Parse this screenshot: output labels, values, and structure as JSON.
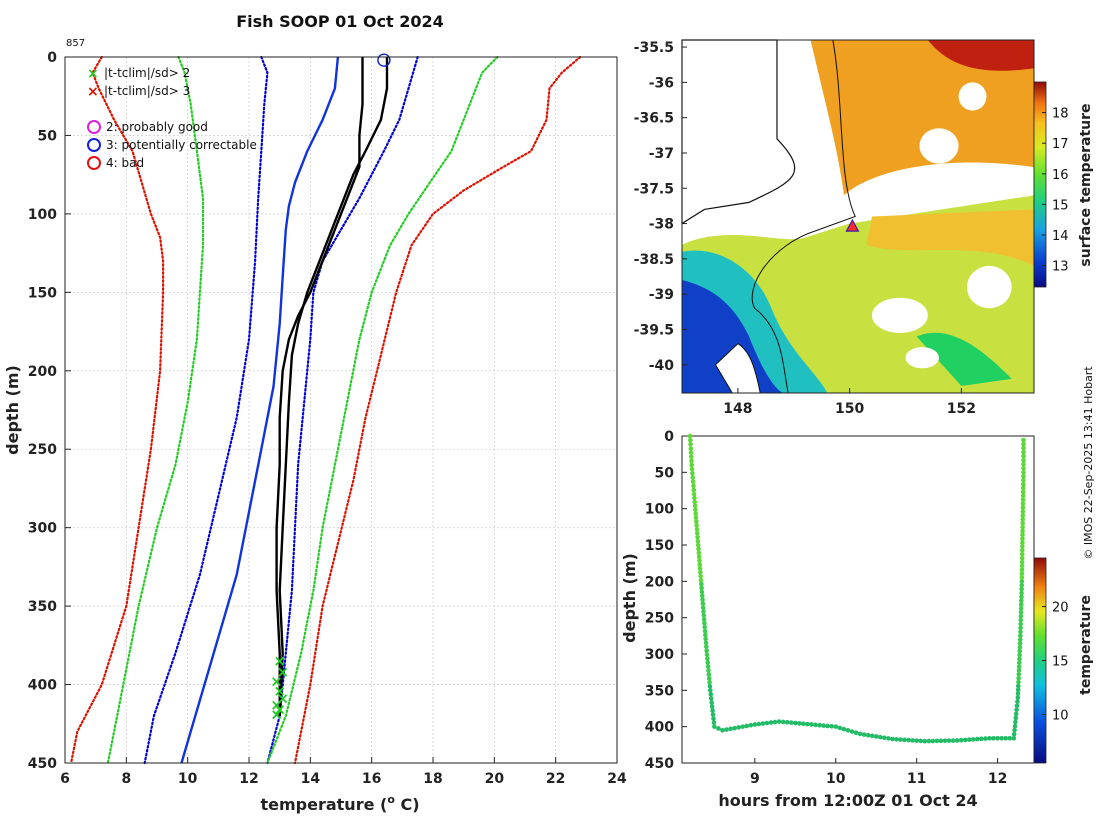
{
  "title": "Fish SOOP 01 Oct 2024",
  "profile_id": "857",
  "credit": "© IMOS 22-Sep-2025 13:41 Hobart",
  "legend": {
    "x2": "|t-tclim|/sd> 2",
    "x3": "|t-tclim|/sd> 3",
    "q2": "2: probably good",
    "q3": "3: potentially correctable",
    "q4": "4: bad"
  },
  "colors": {
    "clim_sd1": "#0000dd",
    "clim_sd2": "#22cc22",
    "clim_sd3": "#dd1100",
    "profile": "#000000",
    "mean": "#1133dd"
  },
  "chart_data": [
    {
      "type": "line",
      "title": "Fish SOOP 01 Oct 2024",
      "xlabel": "temperature (",
      "xlabel_unit": "o",
      "xlabel_tail": " C)",
      "ylabel": "depth (m)",
      "xlim": [
        6,
        24
      ],
      "ylim": [
        450,
        0
      ],
      "xticks": [
        6,
        8,
        10,
        12,
        14,
        16,
        18,
        20,
        22,
        24
      ],
      "yticks": [
        0,
        50,
        100,
        150,
        200,
        250,
        300,
        350,
        400,
        450
      ],
      "grid": true,
      "series": [
        {
          "name": "clim -3sd",
          "style": "dotted",
          "color": "#dd1100",
          "points": [
            [
              7.2,
              0
            ],
            [
              6.9,
              10
            ],
            [
              7.1,
              20
            ],
            [
              7.6,
              40
            ],
            [
              8.2,
              60
            ],
            [
              8.5,
              80
            ],
            [
              8.8,
              100
            ],
            [
              9.1,
              115
            ],
            [
              9.2,
              130
            ],
            [
              9.2,
              150
            ],
            [
              9.1,
              200
            ],
            [
              8.8,
              250
            ],
            [
              8.4,
              300
            ],
            [
              8.0,
              350
            ],
            [
              7.2,
              400
            ],
            [
              6.4,
              430
            ],
            [
              6.2,
              450
            ]
          ]
        },
        {
          "name": "clim -2sd",
          "style": "dotted",
          "color": "#22cc22",
          "points": [
            [
              9.7,
              0
            ],
            [
              9.9,
              10
            ],
            [
              10.1,
              30
            ],
            [
              10.3,
              60
            ],
            [
              10.5,
              90
            ],
            [
              10.5,
              120
            ],
            [
              10.4,
              150
            ],
            [
              10.3,
              180
            ],
            [
              10.0,
              220
            ],
            [
              9.6,
              260
            ],
            [
              9.0,
              300
            ],
            [
              8.4,
              350
            ],
            [
              7.9,
              400
            ],
            [
              7.4,
              450
            ]
          ]
        },
        {
          "name": "clim -1sd",
          "style": "dotted",
          "color": "#0000dd",
          "points": [
            [
              12.4,
              0
            ],
            [
              12.6,
              10
            ],
            [
              12.5,
              30
            ],
            [
              12.4,
              60
            ],
            [
              12.3,
              90
            ],
            [
              12.2,
              130
            ],
            [
              12.0,
              180
            ],
            [
              11.6,
              230
            ],
            [
              11.0,
              280
            ],
            [
              10.4,
              330
            ],
            [
              9.6,
              380
            ],
            [
              8.9,
              420
            ],
            [
              8.6,
              450
            ]
          ]
        },
        {
          "name": "clim mean",
          "style": "solid",
          "color": "#1133dd",
          "points": [
            [
              14.9,
              0
            ],
            [
              14.8,
              20
            ],
            [
              14.4,
              40
            ],
            [
              13.9,
              60
            ],
            [
              13.5,
              80
            ],
            [
              13.3,
              95
            ],
            [
              13.2,
              110
            ],
            [
              13.1,
              140
            ],
            [
              13.0,
              170
            ],
            [
              12.8,
              210
            ],
            [
              12.4,
              250
            ],
            [
              12.0,
              290
            ],
            [
              11.6,
              330
            ],
            [
              11.0,
              370
            ],
            [
              10.4,
              410
            ],
            [
              9.8,
              450
            ]
          ]
        },
        {
          "name": "clim +1sd",
          "style": "dotted",
          "color": "#0000dd",
          "points": [
            [
              17.5,
              0
            ],
            [
              17.2,
              20
            ],
            [
              16.9,
              40
            ],
            [
              16.4,
              60
            ],
            [
              15.6,
              90
            ],
            [
              15.0,
              110
            ],
            [
              14.4,
              130
            ],
            [
              14.1,
              150
            ],
            [
              14.0,
              180
            ],
            [
              13.8,
              220
            ],
            [
              13.6,
              260
            ],
            [
              13.5,
              300
            ],
            [
              13.4,
              340
            ],
            [
              13.2,
              380
            ],
            [
              13.0,
              420
            ],
            [
              12.6,
              450
            ]
          ]
        },
        {
          "name": "clim +2sd",
          "style": "dotted",
          "color": "#22cc22",
          "points": [
            [
              20.1,
              0
            ],
            [
              19.6,
              10
            ],
            [
              19.2,
              30
            ],
            [
              18.6,
              60
            ],
            [
              17.9,
              80
            ],
            [
              17.2,
              100
            ],
            [
              16.6,
              120
            ],
            [
              16.0,
              150
            ],
            [
              15.6,
              180
            ],
            [
              15.2,
              220
            ],
            [
              14.8,
              260
            ],
            [
              14.4,
              300
            ],
            [
              14.1,
              340
            ],
            [
              13.7,
              380
            ],
            [
              13.2,
              420
            ],
            [
              12.6,
              450
            ]
          ]
        },
        {
          "name": "clim +3sd",
          "style": "dotted",
          "color": "#dd1100",
          "points": [
            [
              22.8,
              0
            ],
            [
              22.2,
              10
            ],
            [
              21.8,
              20
            ],
            [
              21.7,
              40
            ],
            [
              21.2,
              60
            ],
            [
              20.3,
              70
            ],
            [
              19.0,
              85
            ],
            [
              18.0,
              100
            ],
            [
              17.3,
              120
            ],
            [
              16.8,
              150
            ],
            [
              16.3,
              190
            ],
            [
              15.8,
              230
            ],
            [
              15.4,
              270
            ],
            [
              14.9,
              310
            ],
            [
              14.4,
              350
            ],
            [
              14.0,
              400
            ],
            [
              13.5,
              450
            ]
          ]
        },
        {
          "name": "profile a",
          "style": "solid",
          "color": "#000000",
          "points": [
            [
              16.5,
              0
            ],
            [
              16.5,
              20
            ],
            [
              16.3,
              40
            ],
            [
              15.8,
              60
            ],
            [
              15.4,
              75
            ],
            [
              15.1,
              90
            ],
            [
              14.8,
              105
            ],
            [
              14.5,
              120
            ],
            [
              14.2,
              135
            ],
            [
              13.9,
              150
            ],
            [
              13.6,
              170
            ],
            [
              13.4,
              190
            ],
            [
              13.3,
              220
            ],
            [
              13.2,
              260
            ],
            [
              13.1,
              300
            ],
            [
              13.0,
              340
            ],
            [
              13.1,
              380
            ],
            [
              13.0,
              420
            ]
          ]
        },
        {
          "name": "profile b",
          "style": "solid",
          "color": "#000000",
          "points": [
            [
              15.7,
              0
            ],
            [
              15.7,
              30
            ],
            [
              15.6,
              50
            ],
            [
              15.6,
              70
            ],
            [
              15.3,
              85
            ],
            [
              15.0,
              100
            ],
            [
              14.7,
              115
            ],
            [
              14.3,
              135
            ],
            [
              14.0,
              150
            ],
            [
              13.6,
              165
            ],
            [
              13.3,
              180
            ],
            [
              13.1,
              200
            ],
            [
              13.0,
              230
            ],
            [
              13.0,
              260
            ],
            [
              12.9,
              300
            ],
            [
              12.9,
              340
            ],
            [
              13.0,
              380
            ],
            [
              13.0,
              420
            ]
          ]
        }
      ],
      "flags_2sd": [
        [
          13.0,
          385
        ],
        [
          13.1,
          392
        ],
        [
          12.9,
          398
        ],
        [
          13.0,
          404
        ],
        [
          13.1,
          409
        ],
        [
          12.9,
          413
        ],
        [
          13.0,
          416
        ],
        [
          12.9,
          419
        ]
      ],
      "qc_marker": {
        "temperature": 16.4,
        "depth": 2
      }
    },
    {
      "type": "heatmap",
      "title": "",
      "xlim": [
        147.0,
        153.3
      ],
      "ylim": [
        -40.4,
        -35.4
      ],
      "xticks": [
        148,
        150,
        152
      ],
      "yticks": [
        -35.5,
        -36,
        -36.5,
        -37,
        -37.5,
        -38,
        -38.5,
        -39,
        -39.5,
        -40
      ],
      "xtick_labels": [
        "148",
        "150",
        "152"
      ],
      "ytick_labels": [
        "-35.5",
        "-36",
        "-36.5",
        "-37",
        "-37.5",
        "-38",
        "-38.5",
        "-39",
        "-39.5",
        "-40"
      ],
      "colorbar_label": "surface temperature",
      "colorbar_range": [
        12.3,
        19.0
      ],
      "colorbar_ticks": [
        13,
        14,
        15,
        16,
        17,
        18
      ],
      "marker": {
        "lon": 150.05,
        "lat": -38.05
      }
    },
    {
      "type": "scatter",
      "xlabel": "hours from 12:00Z 01 Oct 24",
      "ylabel": "depth (m)",
      "xlim": [
        8.1,
        12.45
      ],
      "ylim": [
        450,
        0
      ],
      "xticks": [
        9,
        10,
        11,
        12
      ],
      "yticks": [
        0,
        50,
        100,
        150,
        200,
        250,
        300,
        350,
        400,
        450
      ],
      "colorbar_label": "temperature",
      "colorbar_range": [
        5.5,
        24.5
      ],
      "colorbar_ticks": [
        10,
        15,
        20
      ],
      "points": [
        [
          8.2,
          0
        ],
        [
          8.22,
          40
        ],
        [
          8.25,
          80
        ],
        [
          8.3,
          150
        ],
        [
          8.35,
          220
        ],
        [
          8.4,
          290
        ],
        [
          8.45,
          350
        ],
        [
          8.5,
          400
        ],
        [
          8.6,
          405
        ],
        [
          9.0,
          397
        ],
        [
          9.3,
          393
        ],
        [
          9.6,
          396
        ],
        [
          10.0,
          400
        ],
        [
          10.3,
          410
        ],
        [
          10.7,
          417
        ],
        [
          11.1,
          420
        ],
        [
          11.5,
          419
        ],
        [
          11.9,
          416
        ],
        [
          12.2,
          416
        ],
        [
          12.25,
          360
        ],
        [
          12.28,
          280
        ],
        [
          12.3,
          200
        ],
        [
          12.31,
          120
        ],
        [
          12.32,
          50
        ],
        [
          12.32,
          0
        ]
      ]
    }
  ]
}
